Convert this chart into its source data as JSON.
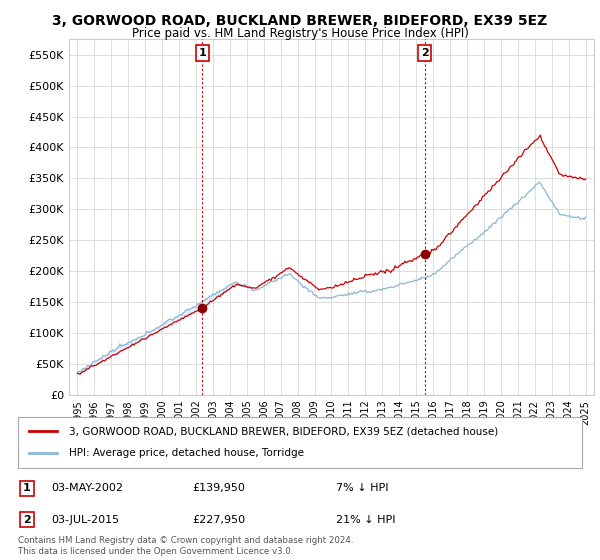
{
  "title": "3, GORWOOD ROAD, BUCKLAND BREWER, BIDEFORD, EX39 5EZ",
  "subtitle": "Price paid vs. HM Land Registry's House Price Index (HPI)",
  "hpi_label": "HPI: Average price, detached house, Torridge",
  "property_label": "3, GORWOOD ROAD, BUCKLAND BREWER, BIDEFORD, EX39 5EZ (detached house)",
  "sale1_date": "03-MAY-2002",
  "sale1_price": 139950,
  "sale1_pct": "7% ↓ HPI",
  "sale1_x": 2002.37,
  "sale2_date": "03-JUL-2015",
  "sale2_price": 227950,
  "sale2_pct": "21% ↓ HPI",
  "sale2_x": 2015.5,
  "ylim": [
    0,
    575000
  ],
  "yticks": [
    0,
    50000,
    100000,
    150000,
    200000,
    250000,
    300000,
    350000,
    400000,
    450000,
    500000,
    550000
  ],
  "hpi_color": "#89b8d4",
  "property_color": "#cc0000",
  "fill_color": "#ddeeff",
  "marker_color": "#8b0000",
  "vline_color": "#cc0000",
  "background_color": "#ffffff",
  "grid_color": "#dddddd",
  "footer_text": "Contains HM Land Registry data © Crown copyright and database right 2024.\nThis data is licensed under the Open Government Licence v3.0."
}
